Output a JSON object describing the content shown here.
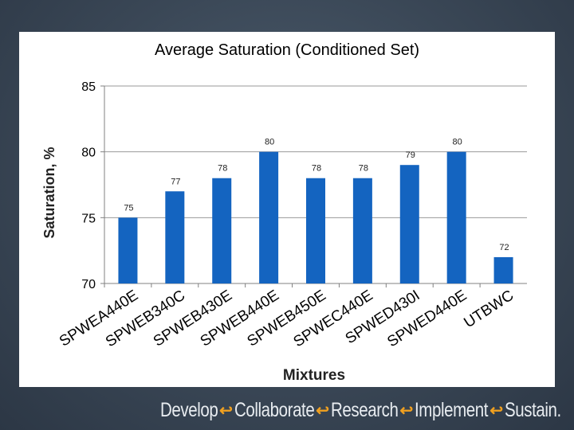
{
  "chart_data": {
    "type": "bar",
    "title": "Average Saturation (Conditioned Set)",
    "xlabel": "Mixtures",
    "ylabel": "Saturation, %",
    "ylim": [
      70,
      85
    ],
    "yticks": [
      70,
      75,
      80,
      85
    ],
    "grid": true,
    "categories": [
      "SPWEA440E",
      "SPWEB340C",
      "SPWEB430E",
      "SPWEB440E",
      "SPWEB450E",
      "SPWEC440E",
      "SPWED430I",
      "SPWED440E",
      "UTBWC"
    ],
    "values": [
      75,
      77,
      78,
      80,
      78,
      78,
      79,
      80,
      72
    ],
    "data_labels": [
      "75",
      "77",
      "78",
      "80",
      "78",
      "78",
      "79",
      "80",
      "72"
    ],
    "bar_color": "#1464c0"
  },
  "footer": {
    "items": [
      {
        "word": "Develop"
      },
      {
        "word": "Collaborate"
      },
      {
        "word": "Research"
      },
      {
        "word": "Implement"
      },
      {
        "word": "Sustain."
      }
    ],
    "arrow_glyph": "↩",
    "arrow_color": "#f0a020"
  }
}
